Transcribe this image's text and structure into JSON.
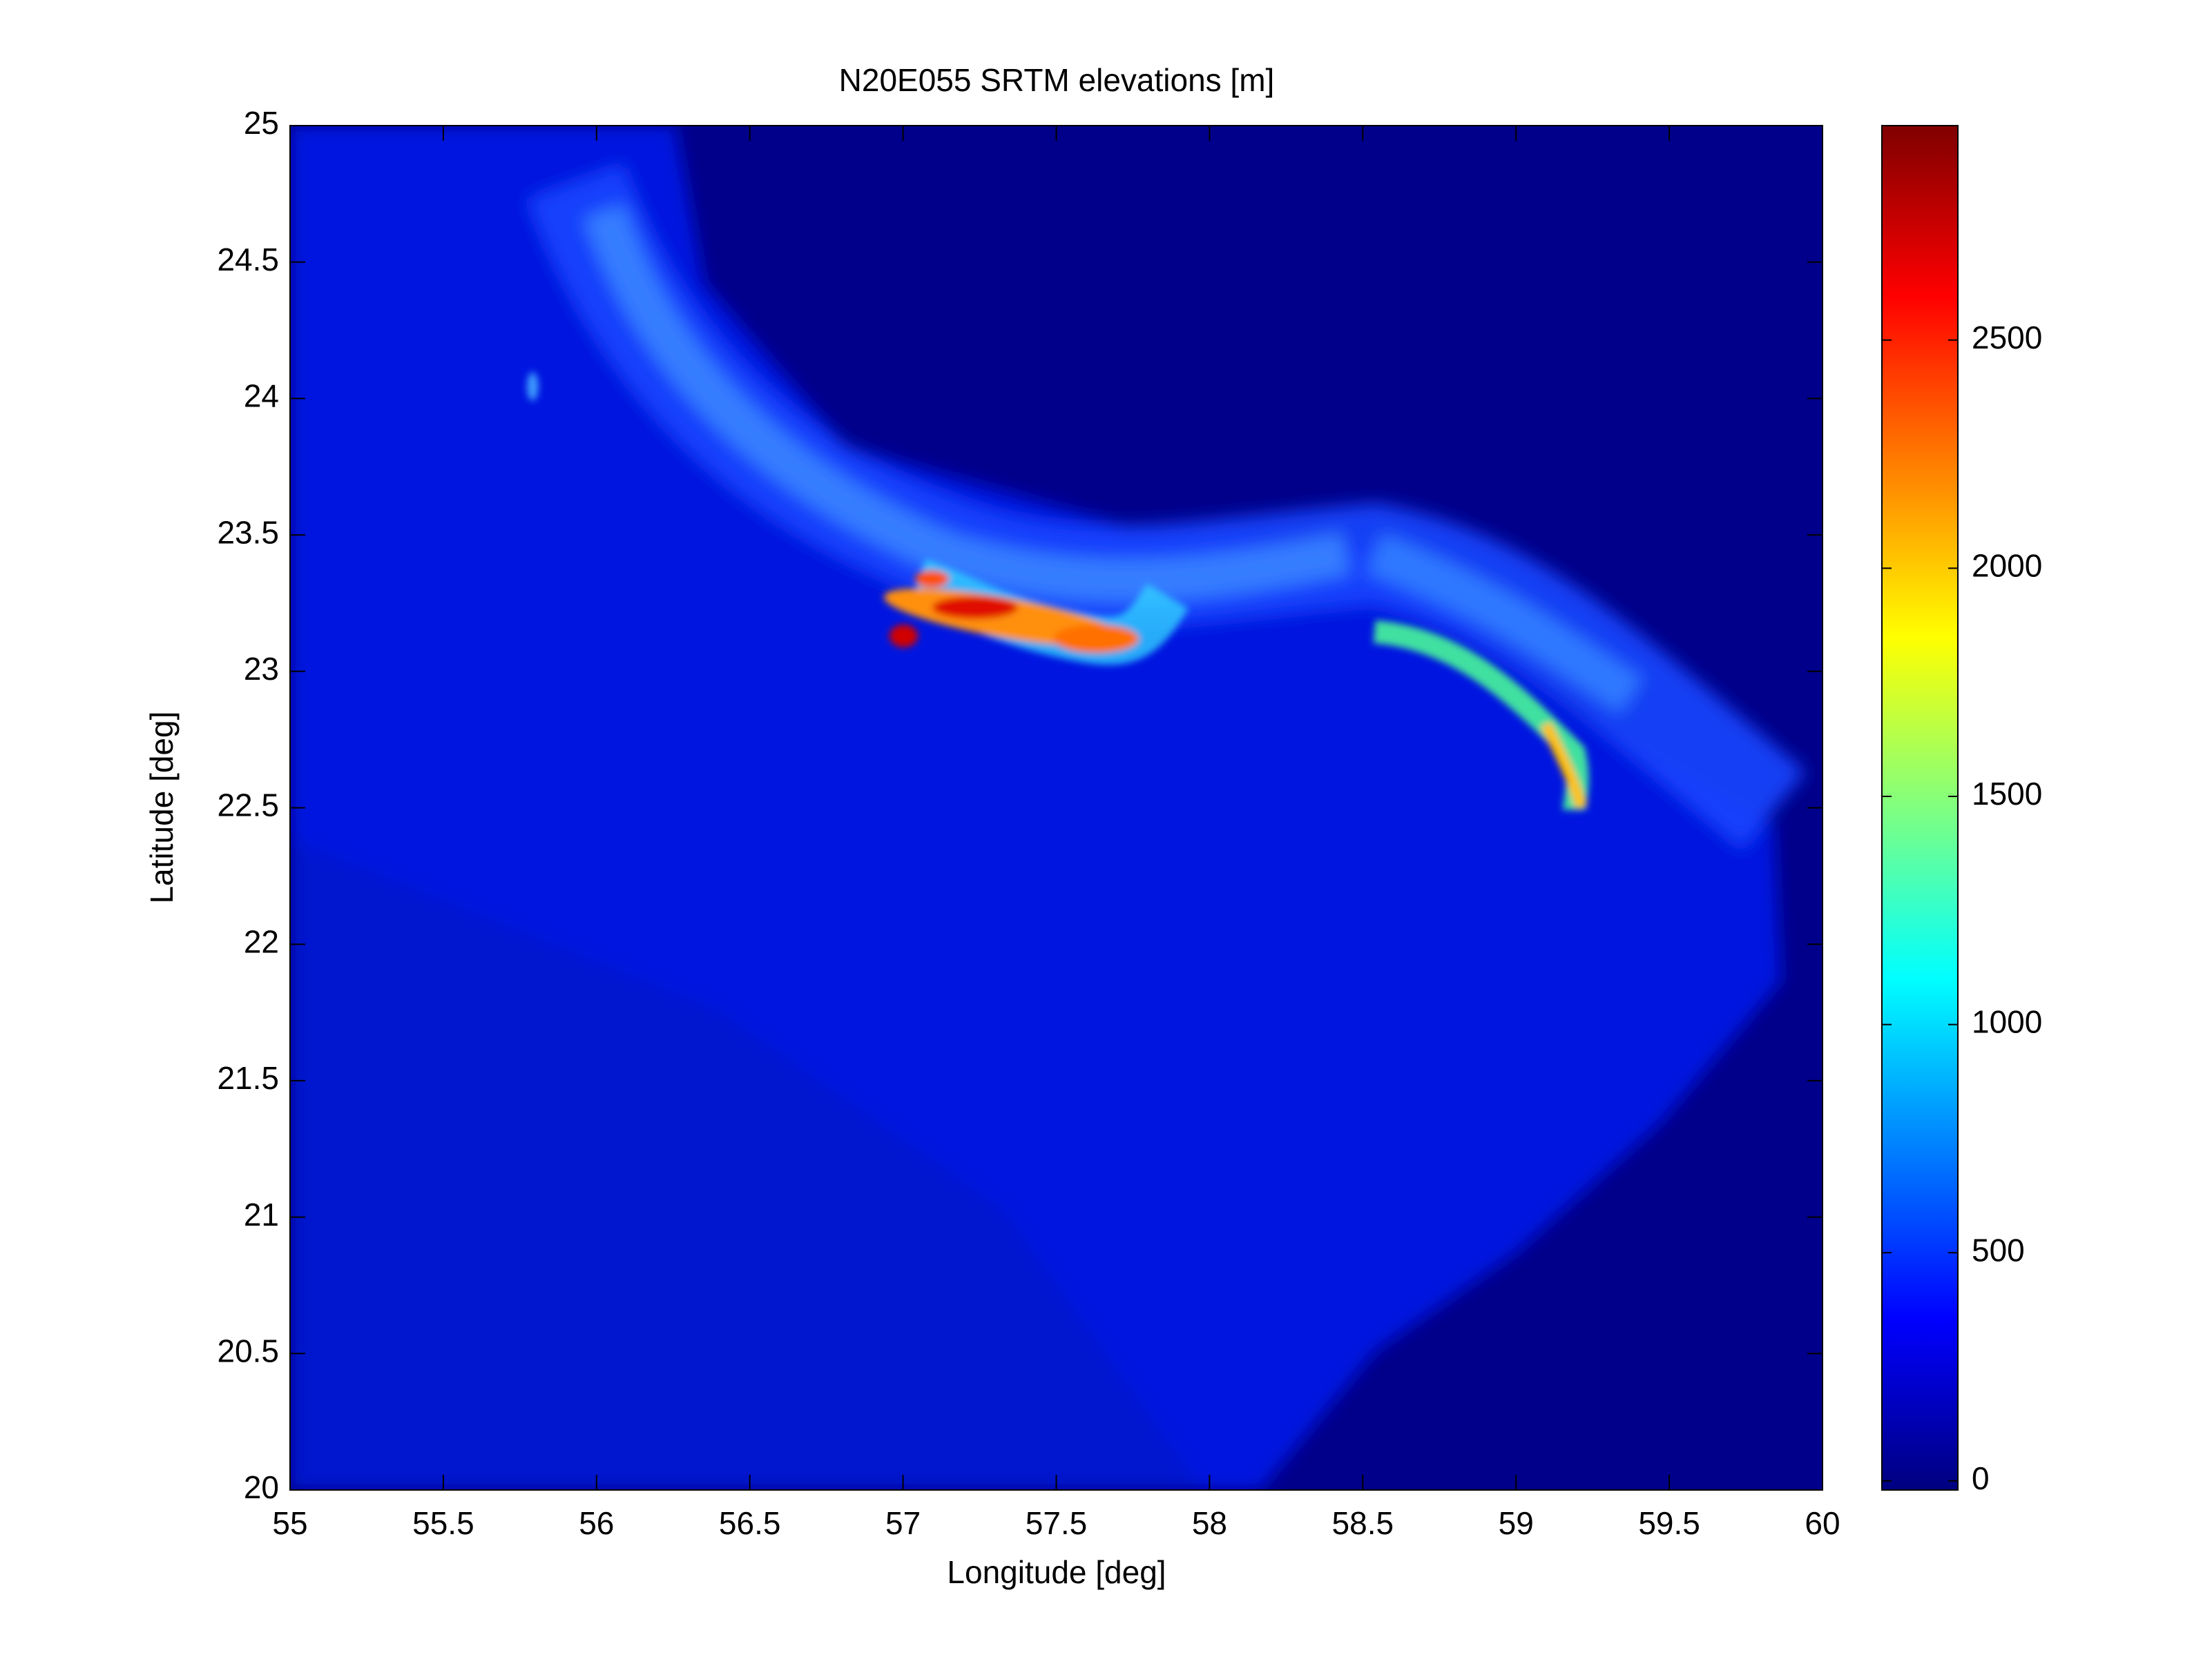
{
  "chart_data": {
    "type": "heatmap",
    "title": "N20E055 SRTM elevations [m]",
    "xlabel": "Longitude [deg]",
    "ylabel": "Latitude [deg]",
    "xlim": [
      55,
      60
    ],
    "ylim": [
      20,
      25
    ],
    "xticks": [
      55,
      55.5,
      56,
      56.5,
      57,
      57.5,
      58,
      58.5,
      59,
      59.5,
      60
    ],
    "yticks": [
      20,
      20.5,
      21,
      21.5,
      22,
      22.5,
      23,
      23.5,
      24,
      24.5,
      25
    ],
    "colorbar": {
      "colormap": "jet",
      "lim": [
        -20,
        2970
      ],
      "ticks": [
        0,
        500,
        1000,
        1500,
        2000,
        2500
      ]
    }
  }
}
